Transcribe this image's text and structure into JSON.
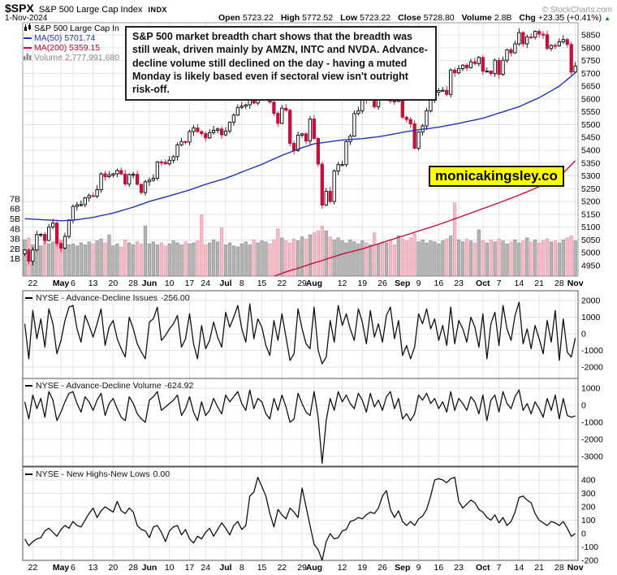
{
  "header": {
    "symbol": "$SPX",
    "name": "S&P 500 Large Cap Index",
    "exchange": "INDX",
    "copyright": "© StockCharts.com",
    "date": "1-Nov-2024",
    "quote_fields": [
      {
        "label": "Open",
        "value": "5723.22"
      },
      {
        "label": "High",
        "value": "5772.52"
      },
      {
        "label": "Low",
        "value": "5723.22"
      },
      {
        "label": "Close",
        "value": "5728.80"
      },
      {
        "label": "Volume",
        "value": "2.8B"
      },
      {
        "label": "Chg",
        "value": "+23.35 (+0.41%)"
      }
    ],
    "chg_direction": "up"
  },
  "legend": {
    "series": "S&P 500 Large Cap In",
    "ma50": "MA(50) 5701.74",
    "ma200": "MA(200) 5359.15",
    "volume": "Volume 2,777,991,680"
  },
  "annotation": {
    "text": "S&P 500 market breadth chart shows that the breadth was still weak, driven mainly by AMZN, INTC and NVDA. Advance-decline volume still declined on the day - having a muted Monday is likely based even if sectoral view isn't outright risk-off."
  },
  "watermark": {
    "text": "monicakingsley.co",
    "bg": "#ffff00"
  },
  "colors": {
    "candle_up_fill": "#ffffff",
    "candle_outline": "#000000",
    "candle_down": "#c4103a",
    "ma50": "#2233bb",
    "ma200": "#cc0033",
    "vol_up_fill": "#b5b5b5",
    "vol_up_stroke": "#878787",
    "vol_down_fill": "#f5bcc8",
    "vol_down_stroke": "#e090a2",
    "grid": "#e3e3e3",
    "main_border": "#999999",
    "panel_border": "#555555",
    "panel_line": "#111111"
  },
  "chart_data": [
    {
      "type": "candlestick",
      "title": "S&P 500 Large Cap In",
      "y_axis": {
        "min": 4950,
        "max": 5850,
        "step": 50,
        "side": "right"
      },
      "volume_axis_labels": [
        "1B",
        "2B",
        "3B",
        "4B",
        "5B",
        "6B",
        "7B"
      ],
      "x_ticks": [
        [
          "22",
          2,
          0
        ],
        [
          "May",
          9,
          1
        ],
        [
          "6",
          12,
          0
        ],
        [
          "13",
          17,
          0
        ],
        [
          "20",
          22,
          0
        ],
        [
          "28",
          27,
          0
        ],
        [
          "Jun",
          31,
          1
        ],
        [
          "10",
          36,
          0
        ],
        [
          "17",
          41,
          0
        ],
        [
          "24",
          45,
          0
        ],
        [
          "Jul",
          50,
          1
        ],
        [
          "8",
          54,
          0
        ],
        [
          "15",
          59,
          0
        ],
        [
          "22",
          64,
          0
        ],
        [
          "29",
          69,
          0
        ],
        [
          "Aug",
          72,
          1
        ],
        [
          "12",
          79,
          0
        ],
        [
          "19",
          84,
          0
        ],
        [
          "26",
          89,
          0
        ],
        [
          "Sep",
          94,
          1
        ],
        [
          "9",
          98,
          0
        ],
        [
          "16",
          103,
          0
        ],
        [
          "23",
          108,
          0
        ],
        [
          "Oct",
          114,
          1
        ],
        [
          "7",
          118,
          0
        ],
        [
          "14",
          123,
          0
        ],
        [
          "21",
          128,
          0
        ],
        [
          "28",
          133,
          0
        ],
        [
          "Nov",
          137,
          1
        ]
      ],
      "close": [
        5011,
        4967,
        5011,
        5071,
        5072,
        5048,
        5100,
        5116,
        5036,
        5018,
        5064,
        5128,
        5181,
        5187,
        5188,
        5214,
        5223,
        5221,
        5246,
        5308,
        5297,
        5303,
        5308,
        5321,
        5307,
        5268,
        5305,
        5306,
        5267,
        5235,
        5277,
        5283,
        5291,
        5354,
        5353,
        5347,
        5361,
        5375,
        5421,
        5434,
        5432,
        5473,
        5487,
        5473,
        5465,
        5448,
        5469,
        5478,
        5483,
        5460,
        5475,
        5509,
        5537,
        5567,
        5572,
        5577,
        5634,
        5584,
        5615,
        5631,
        5667,
        5588,
        5544,
        5505,
        5564,
        5556,
        5427,
        5399,
        5459,
        5464,
        5436,
        5522,
        5446,
        5346,
        5186,
        5240,
        5200,
        5319,
        5344,
        5344,
        5434,
        5455,
        5543,
        5554,
        5608,
        5597,
        5620,
        5570,
        5634,
        5616,
        5625,
        5592,
        5591,
        5648,
        5529,
        5520,
        5503,
        5408,
        5471,
        5495,
        5554,
        5595,
        5626,
        5633,
        5634,
        5618,
        5713,
        5702,
        5718,
        5732,
        5722,
        5745,
        5738,
        5762,
        5708,
        5709,
        5699,
        5751,
        5696,
        5751,
        5792,
        5780,
        5815,
        5859,
        5815,
        5842,
        5841,
        5864,
        5853,
        5851,
        5797,
        5809,
        5808,
        5823,
        5832,
        5813,
        5705,
        5728.8
      ],
      "volume": [
        2.9,
        3.1,
        2.4,
        2.6,
        2.3,
        2.8,
        2.5,
        2.7,
        3.3,
        2.9,
        2.6,
        2.4,
        2.5,
        2.3,
        2.6,
        2.4,
        2.7,
        2.5,
        2.8,
        3.0,
        2.6,
        3.4,
        2.3,
        2.5,
        2.2,
        2.9,
        2.6,
        2.4,
        2.7,
        2.5,
        4.3,
        2.5,
        2.7,
        2.4,
        2.6,
        2.3,
        2.5,
        2.8,
        2.6,
        2.4,
        2.7,
        2.5,
        2.6,
        2.8,
        5.4,
        2.4,
        2.6,
        2.9,
        2.7,
        4.1,
        2.4,
        2.6,
        2.3,
        2.2,
        2.5,
        2.7,
        2.4,
        2.9,
        2.6,
        2.8,
        2.7,
        2.5,
        2.9,
        4.0,
        3.1,
        2.8,
        2.6,
        3.0,
        2.8,
        3.2,
        3.0,
        3.4,
        3.6,
        3.8,
        4.3,
        3.8,
        3.2,
        2.9,
        3.1,
        2.8,
        2.6,
        2.9,
        2.7,
        2.5,
        2.8,
        2.6,
        2.4,
        3.6,
        2.5,
        2.7,
        2.6,
        2.9,
        2.4,
        3.3,
        3.0,
        2.8,
        3.1,
        3.5,
        2.7,
        2.9,
        2.6,
        2.8,
        2.7,
        2.5,
        2.8,
        3.0,
        3.3,
        6.6,
        2.9,
        2.7,
        3.0,
        2.8,
        2.6,
        3.9,
        2.8,
        2.6,
        2.9,
        2.7,
        3.0,
        2.8,
        2.5,
        2.7,
        2.9,
        2.6,
        2.8,
        3.1,
        2.7,
        2.9,
        2.6,
        2.8,
        3.0,
        2.7,
        2.8,
        2.6,
        2.9,
        3.1,
        3.3,
        2.8
      ],
      "ma50": {
        "period": 50,
        "last": 5701.74,
        "anchors": [
          [
            0,
            5133
          ],
          [
            9,
            5125
          ],
          [
            12,
            5127
          ],
          [
            17,
            5138
          ],
          [
            22,
            5155
          ],
          [
            27,
            5178
          ],
          [
            31,
            5200
          ],
          [
            36,
            5222
          ],
          [
            41,
            5245
          ],
          [
            45,
            5267
          ],
          [
            50,
            5290
          ],
          [
            54,
            5315
          ],
          [
            59,
            5345
          ],
          [
            64,
            5380
          ],
          [
            69,
            5410
          ],
          [
            72,
            5425
          ],
          [
            79,
            5440
          ],
          [
            84,
            5445
          ],
          [
            89,
            5455
          ],
          [
            94,
            5470
          ],
          [
            98,
            5480
          ],
          [
            103,
            5490
          ],
          [
            108,
            5505
          ],
          [
            114,
            5525
          ],
          [
            118,
            5545
          ],
          [
            123,
            5570
          ],
          [
            128,
            5605
          ],
          [
            133,
            5650
          ],
          [
            137,
            5702
          ]
        ]
      },
      "ma200": {
        "period": 200,
        "last": 5359.15,
        "anchors": [
          [
            52,
            4850
          ],
          [
            59,
            4890
          ],
          [
            64,
            4920
          ],
          [
            69,
            4945
          ],
          [
            72,
            4960
          ],
          [
            79,
            4995
          ],
          [
            84,
            5015
          ],
          [
            89,
            5040
          ],
          [
            94,
            5065
          ],
          [
            98,
            5085
          ],
          [
            103,
            5110
          ],
          [
            108,
            5138
          ],
          [
            114,
            5172
          ],
          [
            118,
            5195
          ],
          [
            123,
            5225
          ],
          [
            128,
            5258
          ],
          [
            133,
            5295
          ],
          [
            137,
            5359
          ]
        ]
      }
    },
    {
      "type": "line",
      "label": "NYSE - Advance-Decline Issues",
      "last_value": "-256.00",
      "y_ticks": [
        2000,
        1000,
        0,
        -1000,
        -2000
      ],
      "values": [
        600,
        -1500,
        1400,
        -300,
        900,
        -800,
        1500,
        600,
        -1200,
        -400,
        800,
        1600,
        1700,
        300,
        -500,
        1100,
        500,
        -200,
        600,
        1500,
        -700,
        400,
        800,
        -300,
        -900,
        -1400,
        1000,
        300,
        -600,
        -1100,
        -1500,
        700,
        900,
        1600,
        -400,
        -100,
        300,
        600,
        1100,
        -800,
        -300,
        1200,
        -600,
        -1500,
        500,
        -900,
        -400,
        700,
        -200,
        -800,
        1300,
        400,
        1000,
        1700,
        300,
        -500,
        1800,
        -300,
        900,
        400,
        -700,
        -1300,
        800,
        -400,
        1200,
        -200,
        -1600,
        -1200,
        1500,
        300,
        -600,
        -900,
        1600,
        -1000,
        -1800,
        -1400,
        800,
        -500,
        1700,
        500,
        1200,
        300,
        -400,
        1500,
        700,
        -600,
        1400,
        -200,
        600,
        -500,
        1100,
        1600,
        -300,
        800,
        -1300,
        -700,
        -1500,
        -800,
        1200,
        600,
        1500,
        300,
        900,
        -400,
        500,
        -700,
        1600,
        -600,
        800,
        300,
        -500,
        1000,
        400,
        -800,
        1200,
        -1500,
        600,
        1300,
        -700,
        1700,
        300,
        -400,
        1100,
        1900,
        -600,
        300,
        -900,
        500,
        -300,
        -1200,
        800,
        -500,
        1400,
        -1600,
        900,
        -1100,
        -1400,
        -256
      ]
    },
    {
      "type": "line",
      "label": "NYSE - Advance-Decline Volume",
      "last_value": "-624.92",
      "y_ticks": [
        1000,
        0,
        -1000,
        -2000,
        -3000
      ],
      "values": [
        200,
        -800,
        600,
        -200,
        400,
        -700,
        800,
        300,
        -900,
        -400,
        200,
        700,
        800,
        100,
        -400,
        500,
        200,
        -300,
        300,
        700,
        -600,
        100,
        400,
        -200,
        -700,
        -900,
        500,
        100,
        -500,
        -800,
        -1000,
        300,
        500,
        800,
        -300,
        -100,
        100,
        300,
        600,
        -600,
        -200,
        500,
        -400,
        -900,
        200,
        -600,
        -300,
        400,
        -100,
        -500,
        600,
        200,
        500,
        800,
        100,
        -300,
        900,
        -200,
        400,
        200,
        -500,
        -800,
        400,
        -300,
        600,
        -100,
        -1000,
        -800,
        700,
        100,
        -400,
        -600,
        800,
        -700,
        -3400,
        -900,
        400,
        -300,
        800,
        200,
        600,
        100,
        -200,
        700,
        300,
        -400,
        700,
        -100,
        300,
        -300,
        500,
        800,
        -200,
        400,
        -800,
        -500,
        -900,
        -500,
        600,
        300,
        700,
        100,
        400,
        -200,
        200,
        -400,
        800,
        -300,
        400,
        100,
        -300,
        500,
        200,
        -500,
        600,
        -900,
        300,
        600,
        -400,
        800,
        100,
        -200,
        500,
        900,
        -300,
        100,
        -500,
        200,
        -200,
        -700,
        400,
        -300,
        600,
        -800,
        400,
        -600,
        -700,
        -624.92
      ]
    },
    {
      "type": "line",
      "label": "NYSE - New Highs-New Lows",
      "last_value": "0.00",
      "y_ticks": [
        400,
        300,
        200,
        100,
        0,
        -100,
        -200
      ],
      "values": [
        -40,
        -90,
        -60,
        -40,
        -30,
        20,
        40,
        10,
        -20,
        30,
        60,
        40,
        90,
        60,
        50,
        100,
        150,
        190,
        120,
        170,
        200,
        180,
        160,
        240,
        170,
        150,
        190,
        160,
        60,
        30,
        20,
        -30,
        50,
        60,
        10,
        -60,
        20,
        50,
        60,
        -10,
        30,
        -40,
        -70,
        -20,
        -40,
        10,
        40,
        -20,
        30,
        80,
        40,
        -10,
        60,
        90,
        30,
        60,
        280,
        310,
        420,
        350,
        280,
        150,
        50,
        180,
        140,
        110,
        190,
        160,
        120,
        340,
        200,
        60,
        -80,
        -120,
        -200,
        -60,
        0,
        -40,
        -30,
        20,
        30,
        90,
        100,
        120,
        110,
        140,
        160,
        150,
        190,
        280,
        320,
        180,
        120,
        170,
        90,
        60,
        90,
        60,
        110,
        130,
        180,
        280,
        400,
        410,
        400,
        380,
        410,
        420,
        240,
        190,
        220,
        250,
        230,
        180,
        160,
        120,
        100,
        140,
        80,
        120,
        60,
        90,
        160,
        270,
        280,
        250,
        230,
        150,
        100,
        80,
        60,
        90,
        80,
        60,
        90,
        40,
        -20,
        0
      ]
    }
  ]
}
